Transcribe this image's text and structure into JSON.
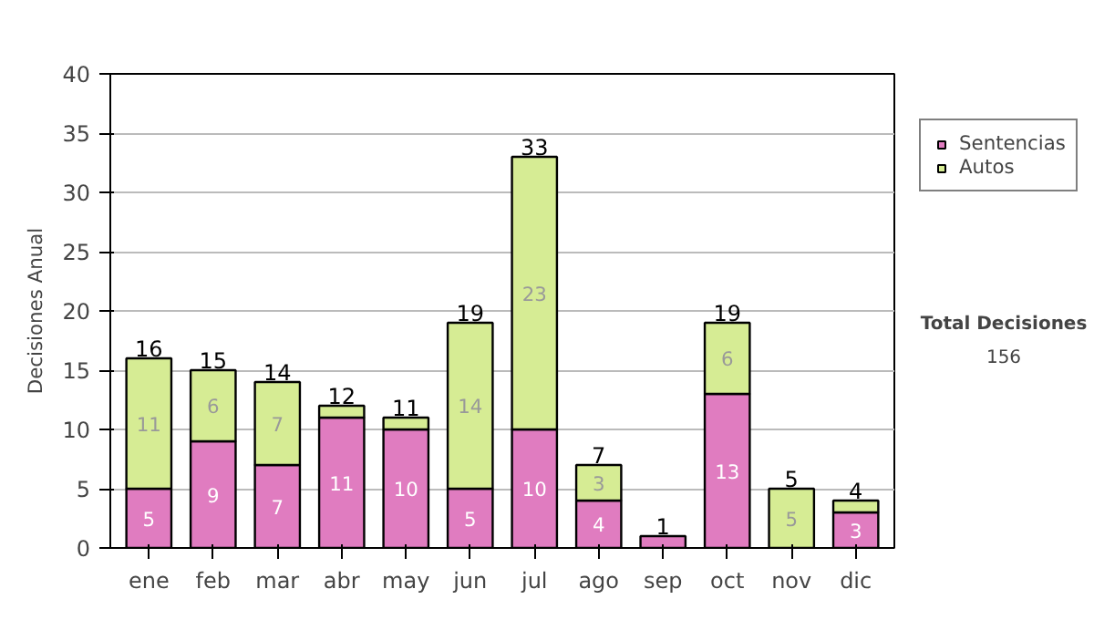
{
  "chart_data": {
    "type": "bar",
    "stacked": true,
    "ylabel": "Decisiones Anual",
    "categories": [
      "ene",
      "feb",
      "mar",
      "abr",
      "may",
      "jun",
      "jul",
      "ago",
      "sep",
      "oct",
      "nov",
      "dic"
    ],
    "series": [
      {
        "name": "Sentencias",
        "color": "#e07cc0",
        "values": [
          5,
          9,
          7,
          11,
          10,
          5,
          10,
          4,
          1,
          13,
          0,
          3
        ],
        "value_labels": [
          "5",
          "9",
          "7",
          "11",
          "10",
          "5",
          "10",
          "4",
          null,
          "13",
          null,
          "3"
        ]
      },
      {
        "name": "Autos",
        "color": "#d6ec94",
        "values": [
          11,
          6,
          7,
          1,
          1,
          14,
          23,
          3,
          0,
          6,
          5,
          1
        ],
        "value_labels": [
          "11",
          "6",
          "7",
          null,
          null,
          "14",
          "23",
          "3",
          null,
          "6",
          "5",
          null
        ]
      }
    ],
    "totals": [
      "16",
      "15",
      "14",
      "12",
      "11",
      "19",
      "33",
      "7",
      "1",
      "19",
      "5",
      "4"
    ],
    "ylim": [
      0,
      40
    ],
    "yticks": [
      0,
      5,
      10,
      15,
      20,
      25,
      30,
      35,
      40
    ],
    "grid": "y",
    "legend": "right",
    "annotations": [
      "Total Decisiones",
      "156"
    ]
  }
}
